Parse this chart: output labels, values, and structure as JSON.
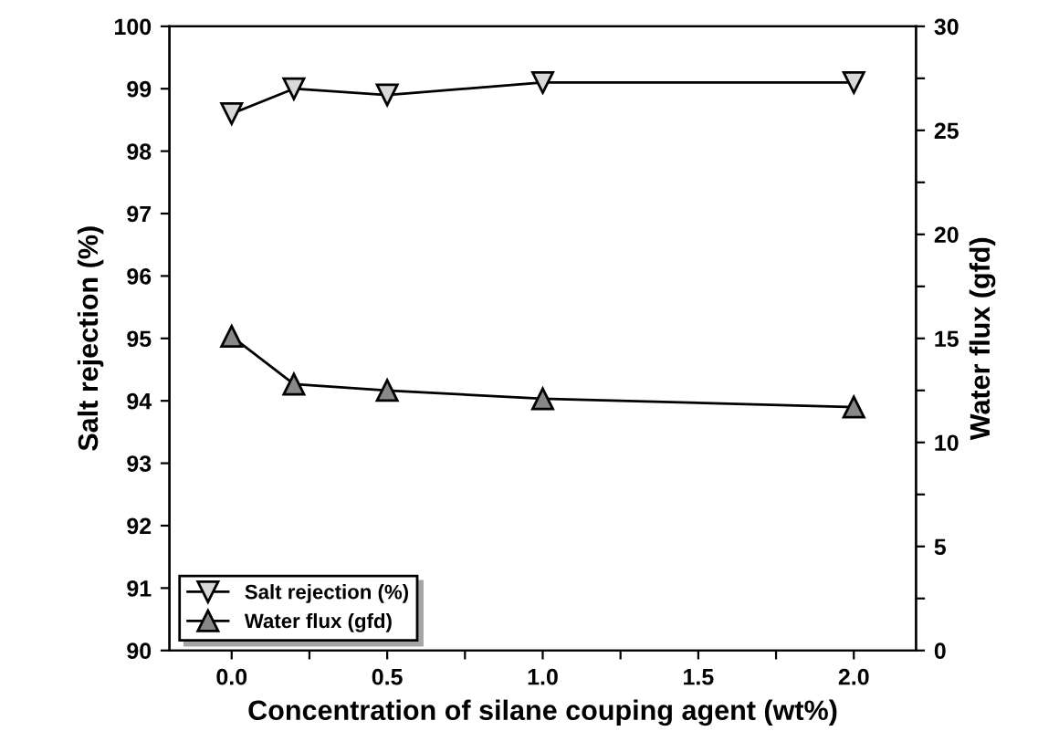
{
  "chart_data": {
    "type": "line",
    "xlabel": "Concentration of silane couping agent (wt%)",
    "ylabel": "Salt rejection (%)",
    "y2label": "Water flux (gfd)",
    "x": [
      0.0,
      0.2,
      0.5,
      1.0,
      2.0
    ],
    "series": [
      {
        "name": "Salt rejection (%)",
        "color": "#000000",
        "marker": "triangle_down",
        "values": [
          98.6,
          99.0,
          98.9,
          99.1,
          99.1
        ]
      },
      {
        "name": "Water flux (gfd)",
        "color": "#000000",
        "marker": "triangle",
        "axis": "y2",
        "values": [
          15.1,
          12.8,
          12.5,
          12.1,
          11.7
        ]
      }
    ],
    "xlim": [
      -0.2,
      2.2
    ],
    "xticks": [
      {
        "value": 0.0,
        "label": "0.0"
      },
      {
        "value": 0.25,
        "label": null
      },
      {
        "value": 0.5,
        "label": "0.5"
      },
      {
        "value": 0.75,
        "label": null
      },
      {
        "value": 1.0,
        "label": "1.0"
      },
      {
        "value": 1.25,
        "label": null
      },
      {
        "value": 1.5,
        "label": "1.5"
      },
      {
        "value": 1.75,
        "label": null
      },
      {
        "value": 2.0,
        "label": "2.0"
      }
    ],
    "ylim": [
      90,
      100
    ],
    "yticks": [
      90,
      91,
      92,
      93,
      94,
      95,
      96,
      97,
      98,
      99,
      100
    ],
    "y2lim": [
      0,
      30
    ],
    "y2ticks": [
      0,
      {
        "value": 2.5,
        "label": null
      },
      5,
      {
        "value": 7.5,
        "label": null
      },
      10,
      {
        "value": 12.5,
        "label": null
      },
      15,
      {
        "value": 17.5,
        "label": null
      },
      20,
      {
        "value": 22.5,
        "label": null
      },
      25,
      {
        "value": 27.5,
        "label": null
      },
      30
    ],
    "legend": "bottom left",
    "line_style": "solid"
  }
}
